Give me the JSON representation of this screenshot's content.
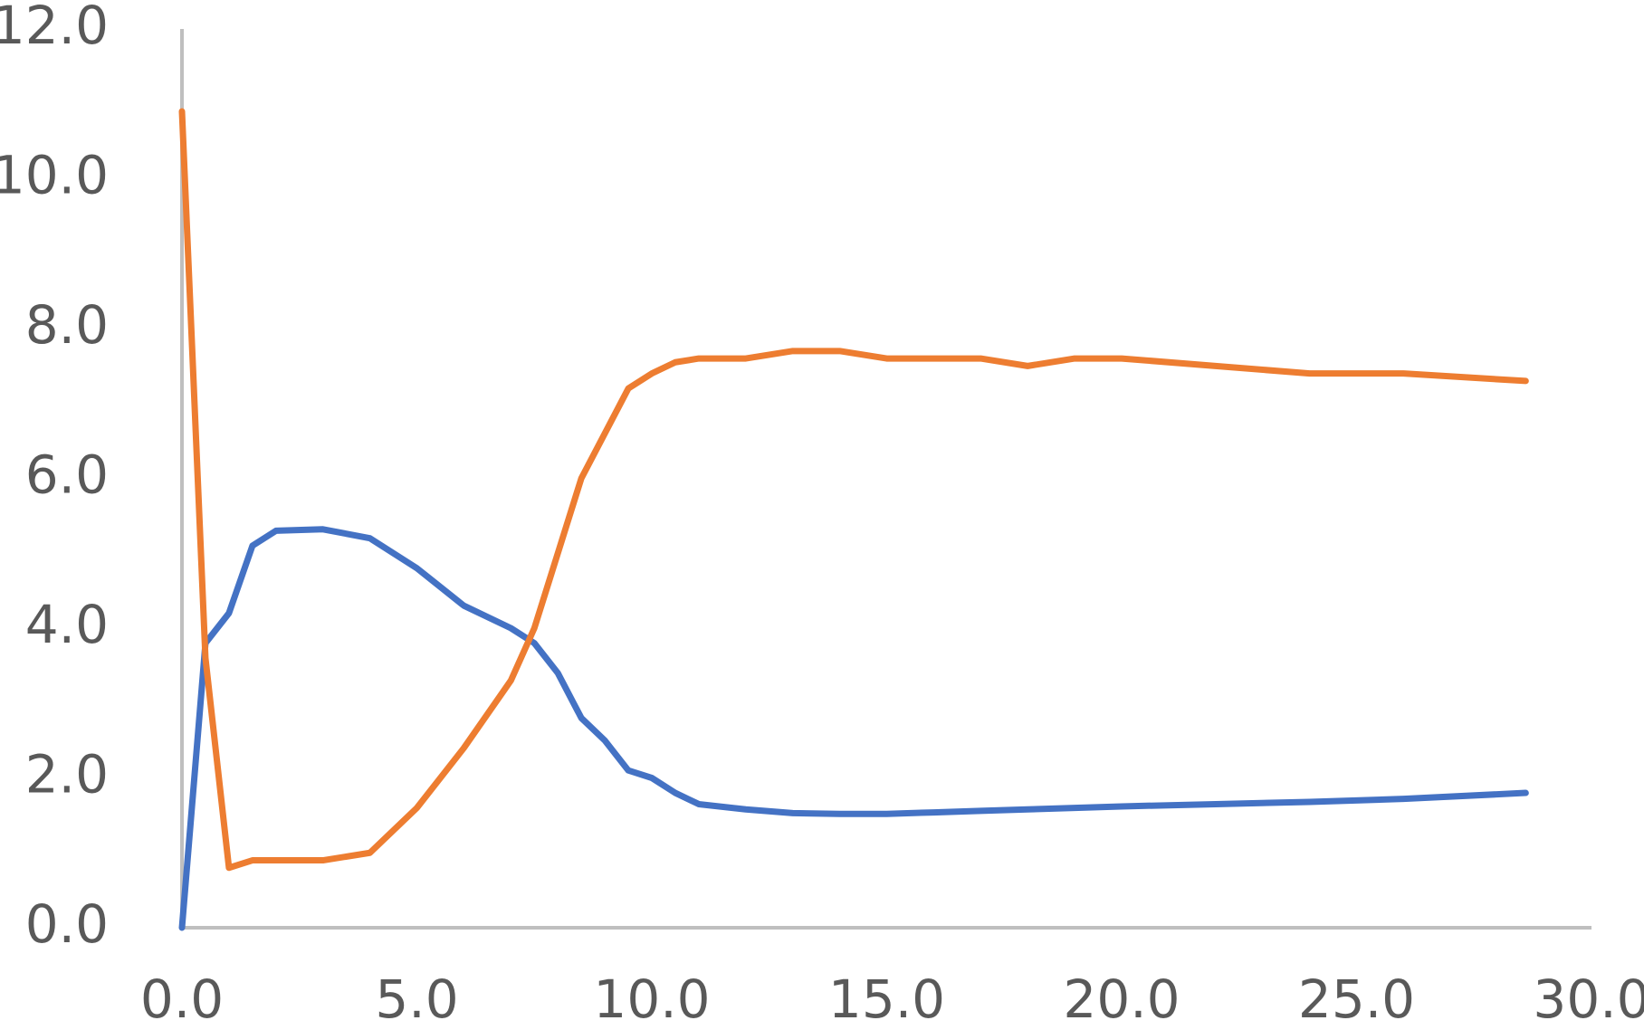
{
  "chart_data": {
    "type": "line",
    "x": [
      0,
      0.5,
      1,
      1.5,
      2,
      3,
      4,
      5,
      6,
      7,
      7.5,
      8,
      8.5,
      9,
      9.5,
      10,
      10.5,
      11,
      12,
      13,
      14,
      15,
      16,
      17,
      18,
      19,
      20,
      22,
      24,
      26,
      28.6
    ],
    "series": [
      {
        "color": "#4472c4",
        "values": [
          0,
          3.8,
          4.2,
          5.1,
          5.3,
          5.32,
          5.2,
          4.8,
          4.3,
          4.0,
          3.8,
          3.4,
          2.8,
          2.5,
          2.1,
          2.0,
          1.8,
          1.65,
          1.58,
          1.53,
          1.52,
          1.52,
          1.54,
          1.56,
          1.58,
          1.6,
          1.62,
          1.65,
          1.68,
          1.72,
          1.8
        ]
      },
      {
        "color": "#ed7d31",
        "values": [
          10.9,
          3.6,
          0.8,
          0.9,
          0.9,
          0.9,
          1.0,
          1.6,
          2.4,
          3.3,
          4.0,
          5.0,
          6.0,
          6.6,
          7.2,
          7.4,
          7.55,
          7.6,
          7.6,
          7.7,
          7.7,
          7.6,
          7.6,
          7.6,
          7.5,
          7.6,
          7.6,
          7.5,
          7.4,
          7.4,
          7.3
        ]
      }
    ],
    "xlim": [
      0,
      30
    ],
    "xticks": [
      {
        "value": 0,
        "label": "0.0"
      },
      {
        "value": 5,
        "label": "5.0"
      },
      {
        "value": 10,
        "label": "10.0"
      },
      {
        "value": 15,
        "label": "15.0"
      },
      {
        "value": 20,
        "label": "20.0"
      },
      {
        "value": 25,
        "label": "25.0"
      },
      {
        "value": 30,
        "label": "30.0"
      }
    ],
    "ylim": [
      0,
      12
    ],
    "yticks": [
      {
        "value": 0,
        "label": "0.0"
      },
      {
        "value": 2,
        "label": "2.0"
      },
      {
        "value": 4,
        "label": "4.0"
      },
      {
        "value": 6,
        "label": "6.0"
      },
      {
        "value": 8,
        "label": "8.0"
      },
      {
        "value": 10,
        "label": "10.0"
      },
      {
        "value": 12,
        "label": "12.0"
      }
    ],
    "grid": false
  }
}
